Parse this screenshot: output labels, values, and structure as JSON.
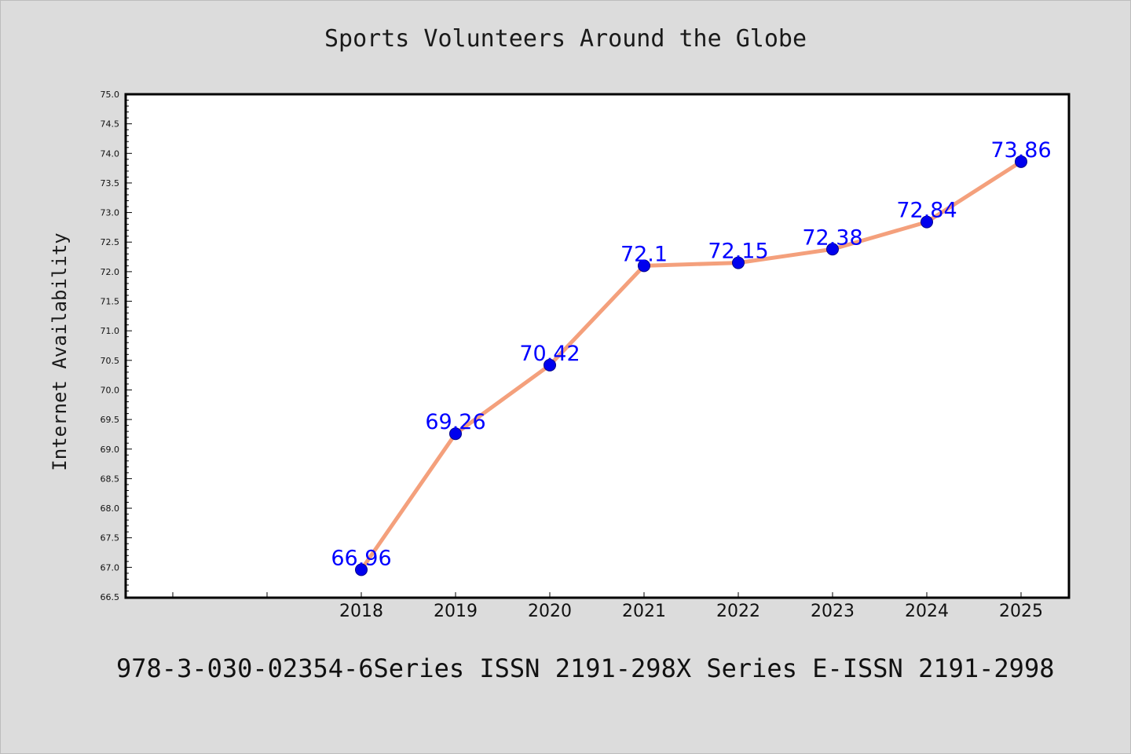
{
  "chart_data": {
    "type": "line",
    "title": "Sports Volunteers Around the Globe",
    "xlabel": "",
    "ylabel": "Internet Availability",
    "categories": [
      "2018",
      "2019",
      "2020",
      "2021",
      "2022",
      "2023",
      "2024",
      "2025"
    ],
    "series": [
      {
        "values": [
          66.96,
          69.26,
          70.42,
          72.1,
          72.15,
          72.38,
          72.84,
          73.86
        ],
        "labels": [
          "66.96",
          "69.26",
          "70.42",
          "72.1",
          "72.15",
          "72.38",
          "72.84",
          "73.86"
        ]
      }
    ],
    "ylim": [
      66.5,
      75.0
    ],
    "yticks": [
      "66.5",
      "67.0",
      "67.5",
      "68.0",
      "68.5",
      "69.0",
      "69.5",
      "70.0",
      "70.5",
      "71.0",
      "71.5",
      "72.0",
      "72.5",
      "73.0",
      "73.5",
      "74.0",
      "74.5",
      "75.0"
    ],
    "grid": false,
    "legend": "none",
    "colors": {
      "line": "#f4a07c",
      "marker": "#0000ee",
      "label": "#0000ff",
      "background": "#dcdcdc",
      "plot_background": "#ffffff"
    }
  },
  "footer": {
    "text": "978-3-030-02354-6Series ISSN 2191-298X Series E-ISSN 2191-2998"
  }
}
